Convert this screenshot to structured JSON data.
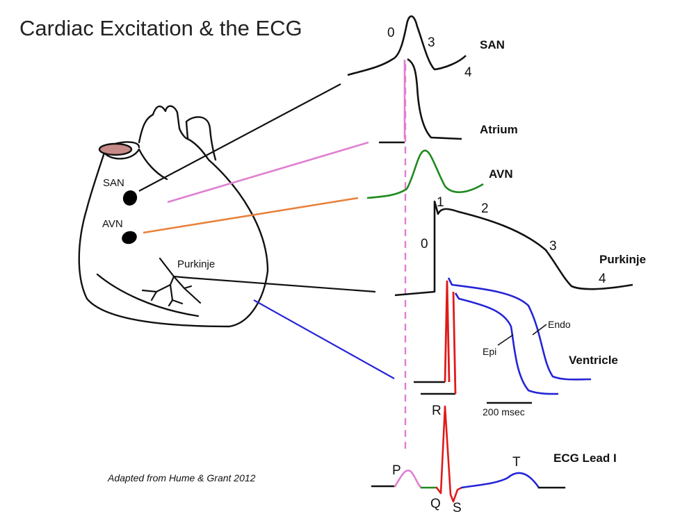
{
  "title": "Cardiac Excitation & the ECG",
  "heart": {
    "san_label": "SAN",
    "avn_label": "AVN",
    "purkinje_label": "Purkinje"
  },
  "traces": {
    "san": {
      "label": "SAN",
      "phase_0": "0",
      "phase_3": "3",
      "phase_4": "4"
    },
    "atrium": {
      "label": "Atrium"
    },
    "avn": {
      "label": "AVN"
    },
    "purkinje": {
      "label": "Purkinje",
      "phase_0": "0",
      "phase_1": "1",
      "phase_2": "2",
      "phase_3": "3",
      "phase_4": "4"
    },
    "ventricle": {
      "label": "Ventricle",
      "endo_label": "Endo",
      "epi_label": "Epi",
      "scale_label": "200 msec"
    },
    "ecg": {
      "label": "ECG Lead I",
      "p": "P",
      "q": "Q",
      "r": "R",
      "s": "S",
      "t": "T"
    }
  },
  "credit": "Adapted from Hume & Grant 2012",
  "colors": {
    "outline": "#111111",
    "san_fill": "#c78a86",
    "atrium_pink": "#e07fd0",
    "avn_green": "#1f8a1f",
    "connector_orange": "#e8823a",
    "ventricle_blue": "#2424d6",
    "qrs_red": "#e01a1a"
  }
}
